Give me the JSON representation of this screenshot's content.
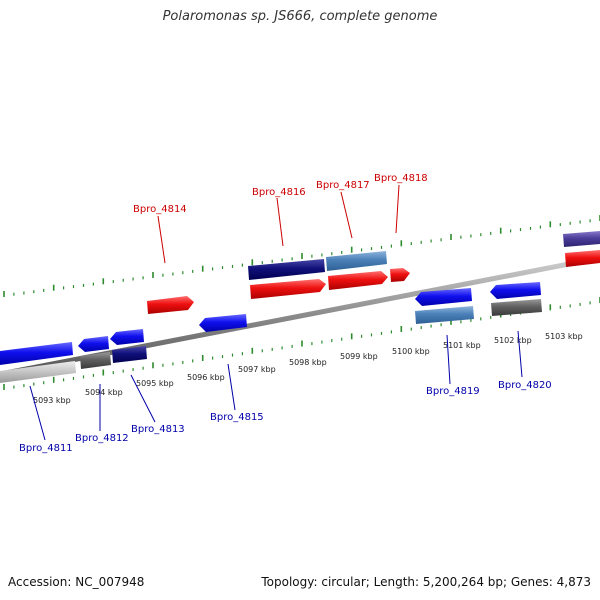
{
  "title": "Polaromonas sp. JS666, complete genome",
  "footer": {
    "accession": "Accession: NC_007948",
    "summary": "Topology: circular; Length: 5,200,264 bp; Genes: 4,873"
  },
  "colors": {
    "plus_label": "#cc0000",
    "minus_label": "#0000aa",
    "tick": "#2e8b2e",
    "track": "#8a8a8a"
  },
  "scale": {
    "ticks": [
      {
        "label": "5093 kbp",
        "kbp": 5093
      },
      {
        "label": "5094 kbp",
        "kbp": 5094
      },
      {
        "label": "5095 kbp",
        "kbp": 5095
      },
      {
        "label": "5096 kbp",
        "kbp": 5096
      },
      {
        "label": "5097 kbp",
        "kbp": 5097
      },
      {
        "label": "5098 kbp",
        "kbp": 5098
      },
      {
        "label": "5099 kbp",
        "kbp": 5099
      },
      {
        "label": "5100 kbp",
        "kbp": 5100
      },
      {
        "label": "5101 kbp",
        "kbp": 5101
      },
      {
        "label": "5102 kbp",
        "kbp": 5102
      },
      {
        "label": "5103 kbp",
        "kbp": 5103
      }
    ]
  },
  "gene_labels": {
    "plus": [
      {
        "name": "Bpro_4814",
        "kbp": 5096.05
      },
      {
        "name": "Bpro_4816",
        "kbp": 5098.05
      },
      {
        "name": "Bpro_4817",
        "kbp": 5099.35
      },
      {
        "name": "Bpro_4818",
        "kbp": 5100.2
      }
    ],
    "minus": [
      {
        "name": "Bpro_4811",
        "kbp": 5092.9
      },
      {
        "name": "Bpro_4812",
        "kbp": 5094.15
      },
      {
        "name": "Bpro_4813",
        "kbp": 5094.85
      },
      {
        "name": "Bpro_4815",
        "kbp": 5096.6
      },
      {
        "name": "Bpro_4819",
        "kbp": 5101.1
      },
      {
        "name": "Bpro_4820",
        "kbp": 5102.4
      }
    ]
  }
}
